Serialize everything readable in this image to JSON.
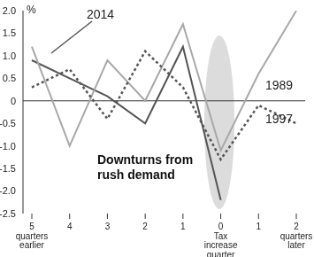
{
  "chart_data": {
    "type": "line",
    "annotation": "Downturns from rush demand",
    "ylabel": "%",
    "categories": [
      "5\nquarters\nearlier",
      "4",
      "3",
      "2",
      "1",
      "0\nTax\nincrease\nquarter",
      "1",
      "2\nquarters\nlater"
    ],
    "series": [
      {
        "name": "2014",
        "color": "#555555",
        "line_style": "solid",
        "values": [
          0.9,
          0.5,
          0.1,
          -0.5,
          1.2,
          -2.2,
          null,
          null
        ]
      },
      {
        "name": "1989",
        "color": "#a8a8a8",
        "line_style": "solid",
        "values": [
          1.2,
          -1.0,
          0.9,
          0.0,
          1.7,
          -1.1,
          0.6,
          2.0
        ]
      },
      {
        "name": "1997",
        "color": "#555555",
        "line_style": "dotted",
        "values": [
          0.3,
          0.7,
          -0.4,
          1.1,
          0.3,
          -1.3,
          -0.1,
          -0.5
        ]
      }
    ],
    "ylim": [
      -2.5,
      2.0
    ],
    "yticks": [
      {
        "value": 2.0,
        "label": "2.0"
      },
      1.5,
      {
        "value": 1.0,
        "label": "1.0"
      },
      0.5,
      0,
      -0.5,
      {
        "value": -1.0,
        "label": "-1.0"
      },
      -1.5,
      {
        "value": -2.0,
        "label": "-2.0"
      },
      -2.5
    ],
    "grid": false
  }
}
